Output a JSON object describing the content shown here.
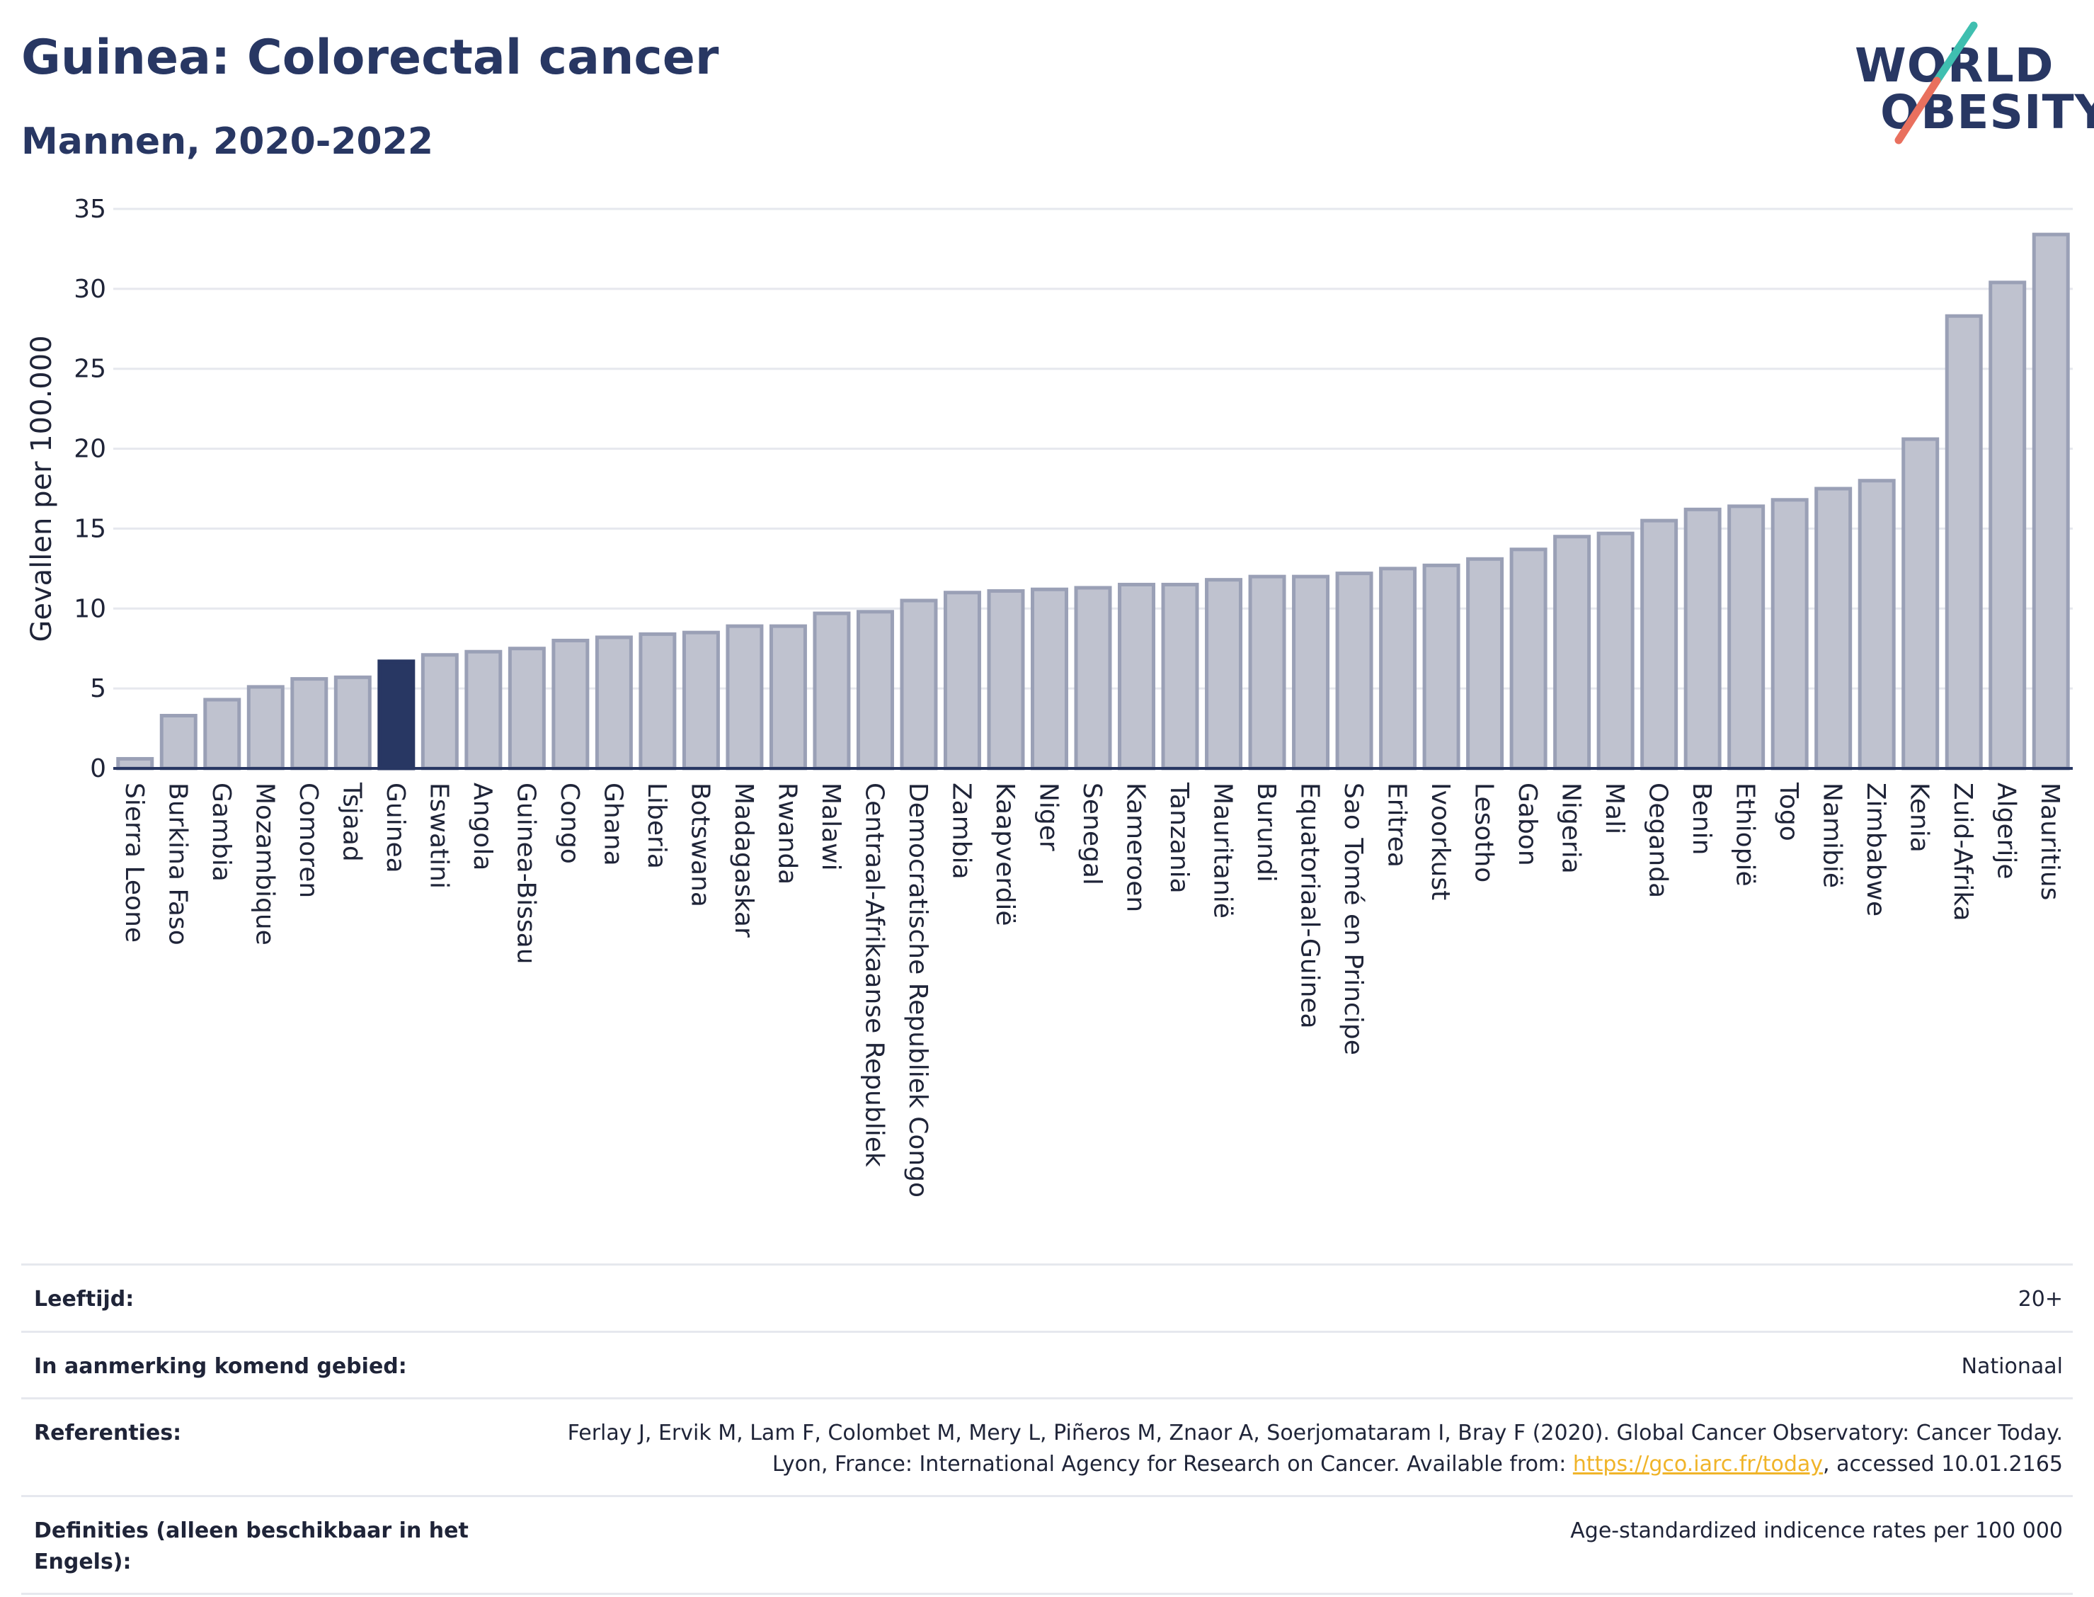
{
  "header": {
    "title": "Guinea: Colorectal cancer",
    "subtitle": "Mannen, 2020-2022"
  },
  "logo": {
    "line1": "WORLD",
    "line2": "OBESITY",
    "text_color": "#283763",
    "stroke_colors": [
      "#3fbfb0",
      "#e9705e"
    ]
  },
  "chart_data": {
    "type": "bar",
    "ylabel": "Gevallen per 100.000",
    "ylim": [
      0,
      35
    ],
    "yticks": [
      0,
      5,
      10,
      15,
      20,
      25,
      30,
      35
    ],
    "grid": true,
    "highlight": "Guinea",
    "colors": {
      "bar": "#bfc2cf",
      "bar_edge": "#9aa0b6",
      "highlight": "#283763",
      "grid": "#e6e8ee",
      "axis": "#283763"
    },
    "categories": [
      "Sierra Leone",
      "Burkina Faso",
      "Gambia",
      "Mozambique",
      "Comoren",
      "Tsjaad",
      "Guinea",
      "Eswatini",
      "Angola",
      "Guinea-Bissau",
      "Congo",
      "Ghana",
      "Liberia",
      "Botswana",
      "Madagaskar",
      "Rwanda",
      "Malawi",
      "Centraal-Afrikaanse Republiek",
      "Democratische Republiek Congo",
      "Zambia",
      "Kaapverdië",
      "Niger",
      "Senegal",
      "Kameroen",
      "Tanzania",
      "Mauritanië",
      "Burundi",
      "Equatoriaal-Guinea",
      "Sao Tomé en Principe",
      "Eritrea",
      "Ivoorkust",
      "Lesotho",
      "Gabon",
      "Nigeria",
      "Mali",
      "Oeganda",
      "Benin",
      "Ethiopië",
      "Togo",
      "Namibië",
      "Zimbabwe",
      "Kenia",
      "Zuid-Afrika",
      "Algerije",
      "Mauritius"
    ],
    "values": [
      0.6,
      3.3,
      4.3,
      5.1,
      5.6,
      5.7,
      6.7,
      7.1,
      7.3,
      7.5,
      8.0,
      8.2,
      8.4,
      8.5,
      8.9,
      8.9,
      9.7,
      9.8,
      10.5,
      11.0,
      11.1,
      11.2,
      11.3,
      11.5,
      11.5,
      11.8,
      12.0,
      12.0,
      12.2,
      12.5,
      12.7,
      13.1,
      13.7,
      14.5,
      14.7,
      15.5,
      16.2,
      16.4,
      16.8,
      17.5,
      18.0,
      20.6,
      28.3,
      30.4,
      33.4
    ]
  },
  "meta": {
    "age_label": "Leeftijd:",
    "age_value": "20+",
    "area_label": "In aanmerking komend gebied:",
    "area_value": "Nationaal",
    "ref_label": "Referenties:",
    "ref_text": "Ferlay J, Ervik M, Lam F, Colombet M, Mery L, Piñeros M, Znaor A, Soerjomataram I, Bray F (2020). Global Cancer Observatory: Cancer Today. Lyon, France: International Agency for Research on Cancer. Available from: ",
    "ref_link": "https://gco.iarc.fr/today",
    "ref_suffix": ", accessed 10.01.2165",
    "def_label": "Definities (alleen beschikbaar in het Engels):",
    "def_value": "Age-standardized indicence rates per 100 000"
  }
}
